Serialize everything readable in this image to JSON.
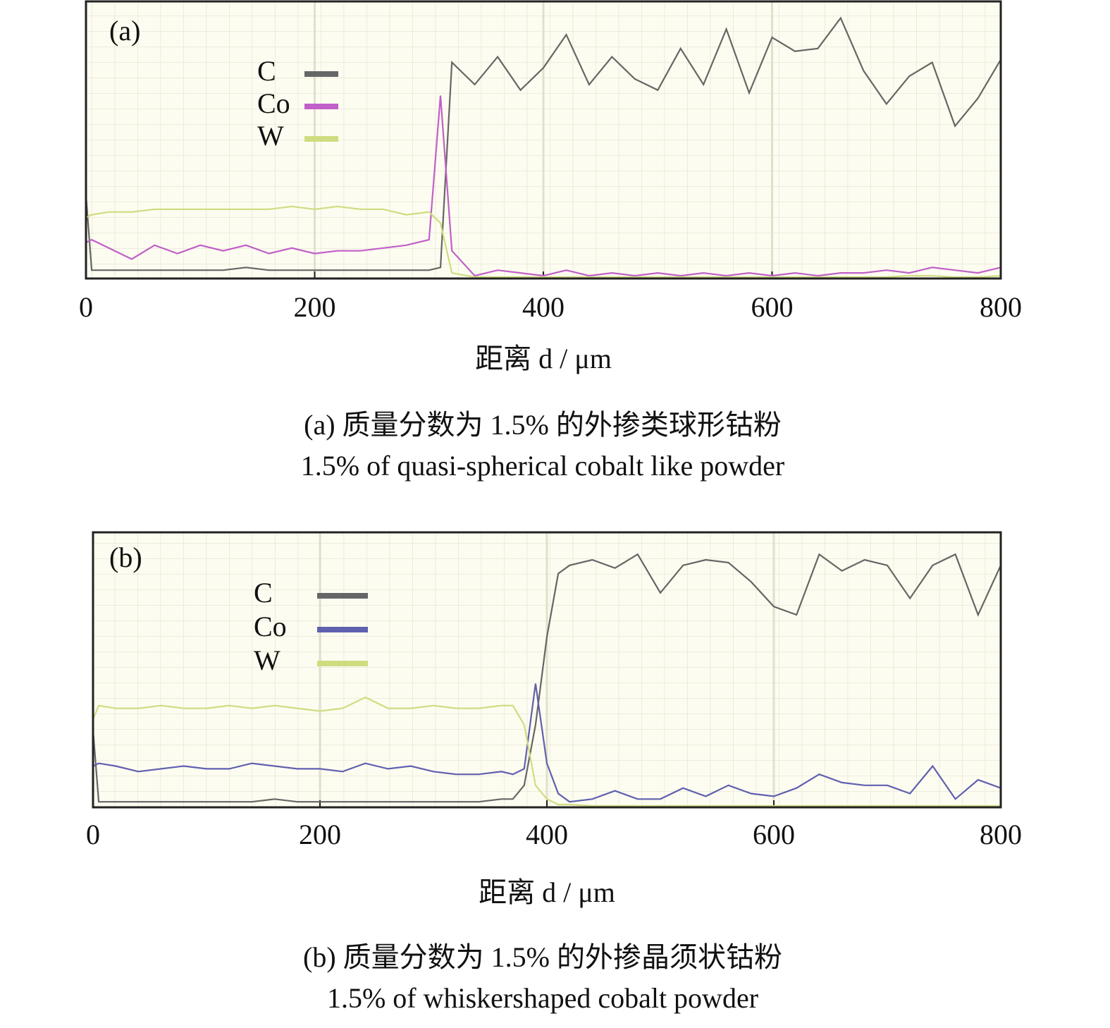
{
  "chart_data": [
    {
      "type": "line",
      "panel": "(a)",
      "xlabel": "距离 d / μm",
      "caption": [
        "(a) 质量分数为 1.5% 的外掺类球形钴粉",
        "1.5% of quasi-spherical cobalt like powder"
      ],
      "xlim": [
        0,
        800
      ],
      "xticks": [
        0,
        200,
        400,
        600,
        800
      ],
      "ylim": [
        0,
        100
      ],
      "grid": true,
      "x": [
        0,
        5,
        20,
        40,
        60,
        80,
        100,
        120,
        140,
        160,
        180,
        200,
        220,
        240,
        260,
        280,
        300,
        310,
        320,
        340,
        360,
        380,
        400,
        420,
        440,
        460,
        480,
        500,
        520,
        540,
        560,
        580,
        600,
        620,
        640,
        660,
        680,
        700,
        720,
        740,
        760,
        780,
        800
      ],
      "series": [
        {
          "name": "C",
          "color": "#666666",
          "values": [
            30,
            3,
            3,
            3,
            3,
            3,
            3,
            3,
            4,
            3,
            3,
            3,
            3,
            3,
            3,
            3,
            3,
            4,
            78,
            70,
            80,
            68,
            76,
            88,
            70,
            80,
            72,
            68,
            83,
            70,
            90,
            67,
            87,
            82,
            83,
            94,
            75,
            63,
            73,
            78,
            55,
            65,
            79
          ]
        },
        {
          "name": "Co",
          "color": "#c060c8",
          "values": [
            13,
            14,
            11,
            7,
            12,
            9,
            12,
            10,
            12,
            9,
            11,
            9,
            10,
            10,
            11,
            12,
            14,
            66,
            10,
            1,
            3,
            2,
            1,
            3,
            1,
            2,
            1,
            2,
            1,
            2,
            1,
            2,
            1,
            2,
            1,
            2,
            2,
            3,
            2,
            4,
            3,
            2,
            4
          ]
        },
        {
          "name": "W",
          "color": "#d0dc80",
          "values": [
            22,
            23,
            24,
            24,
            25,
            25,
            25,
            25,
            25,
            25,
            26,
            25,
            26,
            25,
            25,
            23,
            24,
            20,
            2,
            0.5,
            0.5,
            0.5,
            0.5,
            0.5,
            0.5,
            0.5,
            0.5,
            0.5,
            0.5,
            0.5,
            0.5,
            0.5,
            0.5,
            0.5,
            0.5,
            0.5,
            0.5,
            0.5,
            1,
            1,
            0.5,
            0.5,
            1
          ]
        }
      ]
    },
    {
      "type": "line",
      "panel": "(b)",
      "xlabel": "距离 d / μm",
      "caption": [
        "(b) 质量分数为 1.5% 的外掺晶须状钴粉",
        "1.5% of whiskershaped cobalt powder"
      ],
      "xlim": [
        0,
        800
      ],
      "xticks": [
        0,
        200,
        400,
        600,
        800
      ],
      "ylim": [
        0,
        100
      ],
      "grid": true,
      "x": [
        0,
        5,
        20,
        40,
        60,
        80,
        100,
        120,
        140,
        160,
        180,
        200,
        220,
        240,
        260,
        280,
        300,
        320,
        340,
        360,
        370,
        380,
        390,
        400,
        410,
        420,
        440,
        460,
        480,
        500,
        520,
        540,
        560,
        580,
        600,
        620,
        640,
        660,
        680,
        700,
        720,
        740,
        760,
        780,
        800
      ],
      "series": [
        {
          "name": "C",
          "color": "#666666",
          "values": [
            28,
            2,
            2,
            2,
            2,
            2,
            2,
            2,
            2,
            3,
            2,
            2,
            2,
            2,
            2,
            2,
            2,
            2,
            2,
            3,
            3,
            8,
            30,
            62,
            85,
            88,
            90,
            87,
            92,
            78,
            88,
            90,
            89,
            82,
            73,
            70,
            92,
            86,
            90,
            88,
            76,
            88,
            92,
            70,
            88
          ]
        },
        {
          "name": "Co",
          "color": "#6060b0",
          "values": [
            15,
            16,
            15,
            13,
            14,
            15,
            14,
            14,
            16,
            15,
            14,
            14,
            13,
            16,
            14,
            15,
            13,
            12,
            12,
            13,
            12,
            14,
            45,
            16,
            5,
            2,
            3,
            6,
            3,
            3,
            7,
            4,
            8,
            5,
            4,
            7,
            12,
            9,
            8,
            8,
            5,
            15,
            3,
            10,
            7
          ]
        },
        {
          "name": "W",
          "color": "#d0dc80",
          "values": [
            32,
            37,
            36,
            36,
            37,
            36,
            36,
            37,
            36,
            37,
            36,
            35,
            36,
            40,
            36,
            36,
            37,
            36,
            36,
            37,
            37,
            30,
            8,
            3,
            1,
            1,
            0.5,
            0.5,
            0.5,
            0.5,
            0.5,
            0.5,
            0.5,
            0.5,
            0.5,
            0.5,
            0.5,
            0.5,
            0.5,
            0.5,
            0.5,
            0.5,
            0.5,
            0.5,
            0.5
          ]
        }
      ]
    }
  ]
}
